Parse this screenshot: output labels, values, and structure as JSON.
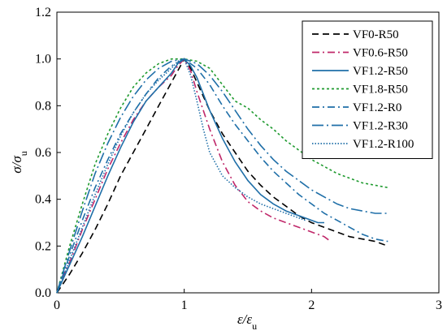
{
  "chart_data": {
    "type": "line",
    "title": "",
    "xlabel": "ε/εu",
    "ylabel": "σ/σu",
    "xlabel_parts": {
      "main": "ε/ε",
      "sub": "u"
    },
    "ylabel_parts": {
      "main": "σ/σ",
      "sub": "u"
    },
    "xlim": [
      0,
      3
    ],
    "ylim": [
      0,
      1.2
    ],
    "x_ticks": [
      "0",
      "1",
      "2",
      "3"
    ],
    "y_ticks": [
      "0.0",
      "0.2",
      "0.4",
      "0.6",
      "0.8",
      "1.0",
      "1.2"
    ],
    "grid": false,
    "legend_position": "top-right",
    "series": [
      {
        "name": "VF0-R50",
        "color": "#000000",
        "dash": "dash",
        "x": [
          0,
          0.1,
          0.2,
          0.3,
          0.4,
          0.5,
          0.6,
          0.7,
          0.8,
          0.9,
          1.0,
          1.05,
          1.1,
          1.2,
          1.3,
          1.4,
          1.5,
          1.6,
          1.7,
          1.8,
          1.9,
          2.0,
          2.1,
          2.2,
          2.3,
          2.4,
          2.5,
          2.6
        ],
        "y": [
          0,
          0.08,
          0.17,
          0.27,
          0.38,
          0.5,
          0.6,
          0.7,
          0.8,
          0.9,
          1.0,
          0.96,
          0.9,
          0.78,
          0.68,
          0.6,
          0.52,
          0.46,
          0.41,
          0.37,
          0.33,
          0.3,
          0.28,
          0.26,
          0.24,
          0.23,
          0.22,
          0.2
        ]
      },
      {
        "name": "VF0.6-R50",
        "color": "#c0286a",
        "dash": "dashdot",
        "x": [
          0,
          0.05,
          0.1,
          0.2,
          0.3,
          0.4,
          0.5,
          0.6,
          0.7,
          0.8,
          0.9,
          0.95,
          1.0,
          1.05,
          1.1,
          1.2,
          1.3,
          1.4,
          1.5,
          1.6,
          1.7,
          1.8,
          1.9,
          2.0,
          2.1,
          2.15
        ],
        "y": [
          0,
          0.07,
          0.13,
          0.27,
          0.4,
          0.53,
          0.64,
          0.74,
          0.82,
          0.88,
          0.93,
          0.97,
          1.0,
          0.95,
          0.86,
          0.7,
          0.56,
          0.46,
          0.39,
          0.35,
          0.32,
          0.3,
          0.28,
          0.26,
          0.24,
          0.22
        ]
      },
      {
        "name": "VF1.2-R50",
        "color": "#1f6fa8",
        "dash": "solid",
        "x": [
          0,
          0.05,
          0.1,
          0.2,
          0.3,
          0.4,
          0.5,
          0.6,
          0.7,
          0.8,
          0.9,
          0.95,
          1.0,
          1.05,
          1.1,
          1.2,
          1.3,
          1.4,
          1.5,
          1.6,
          1.7,
          1.8,
          1.9,
          2.0,
          2.05,
          2.1
        ],
        "y": [
          0,
          0.06,
          0.12,
          0.24,
          0.37,
          0.5,
          0.62,
          0.73,
          0.82,
          0.88,
          0.94,
          0.98,
          1.0,
          0.97,
          0.92,
          0.78,
          0.66,
          0.56,
          0.48,
          0.42,
          0.38,
          0.35,
          0.33,
          0.31,
          0.3,
          0.3
        ]
      },
      {
        "name": "VF1.8-R50",
        "color": "#1e9a2e",
        "dash": "dot",
        "x": [
          0,
          0.05,
          0.1,
          0.2,
          0.3,
          0.4,
          0.5,
          0.6,
          0.7,
          0.8,
          0.9,
          1.0,
          1.1,
          1.2,
          1.3,
          1.4,
          1.5,
          1.6,
          1.7,
          1.8,
          1.9,
          2.0,
          2.1,
          2.2,
          2.3,
          2.4,
          2.5,
          2.6
        ],
        "y": [
          0,
          0.1,
          0.2,
          0.38,
          0.55,
          0.68,
          0.79,
          0.88,
          0.94,
          0.98,
          1.0,
          1.0,
          0.99,
          0.96,
          0.89,
          0.82,
          0.79,
          0.74,
          0.7,
          0.65,
          0.61,
          0.57,
          0.54,
          0.51,
          0.49,
          0.47,
          0.46,
          0.45
        ]
      },
      {
        "name": "VF1.2-R0",
        "color": "#1f6fa8",
        "dash": "dashdot",
        "x": [
          0,
          0.05,
          0.1,
          0.2,
          0.3,
          0.4,
          0.5,
          0.6,
          0.7,
          0.8,
          0.9,
          1.0,
          1.1,
          1.2,
          1.3,
          1.4,
          1.5,
          1.6,
          1.7,
          1.8,
          1.9,
          2.0,
          2.1,
          2.2,
          2.3,
          2.4,
          2.5,
          2.6
        ],
        "y": [
          0,
          0.08,
          0.16,
          0.31,
          0.45,
          0.57,
          0.68,
          0.77,
          0.85,
          0.92,
          0.97,
          1.0,
          0.96,
          0.89,
          0.8,
          0.72,
          0.65,
          0.58,
          0.52,
          0.47,
          0.42,
          0.38,
          0.34,
          0.31,
          0.28,
          0.25,
          0.23,
          0.22
        ]
      },
      {
        "name": "VF1.2-R30",
        "color": "#1f6fa8",
        "dash": "longdashdot",
        "x": [
          0,
          0.05,
          0.1,
          0.2,
          0.3,
          0.4,
          0.5,
          0.6,
          0.7,
          0.8,
          0.9,
          1.0,
          1.1,
          1.2,
          1.3,
          1.4,
          1.5,
          1.6,
          1.7,
          1.8,
          1.9,
          2.0,
          2.1,
          2.2,
          2.3,
          2.4,
          2.5,
          2.6
        ],
        "y": [
          0,
          0.09,
          0.18,
          0.35,
          0.51,
          0.64,
          0.75,
          0.84,
          0.91,
          0.96,
          0.99,
          1.0,
          0.98,
          0.93,
          0.86,
          0.78,
          0.7,
          0.63,
          0.57,
          0.52,
          0.48,
          0.44,
          0.41,
          0.38,
          0.36,
          0.35,
          0.34,
          0.34
        ]
      },
      {
        "name": "VF1.2-R100",
        "color": "#1f6fa8",
        "dash": "finedot",
        "x": [
          0,
          0.05,
          0.1,
          0.2,
          0.3,
          0.4,
          0.5,
          0.6,
          0.7,
          0.8,
          0.9,
          0.95,
          1.0,
          1.05,
          1.1,
          1.15,
          1.2,
          1.3,
          1.4,
          1.5,
          1.6,
          1.7,
          1.8,
          1.9,
          1.95
        ],
        "y": [
          0,
          0.07,
          0.14,
          0.28,
          0.42,
          0.55,
          0.67,
          0.77,
          0.85,
          0.91,
          0.96,
          0.99,
          1.0,
          0.93,
          0.82,
          0.7,
          0.6,
          0.5,
          0.45,
          0.41,
          0.38,
          0.36,
          0.34,
          0.32,
          0.31
        ]
      }
    ]
  }
}
